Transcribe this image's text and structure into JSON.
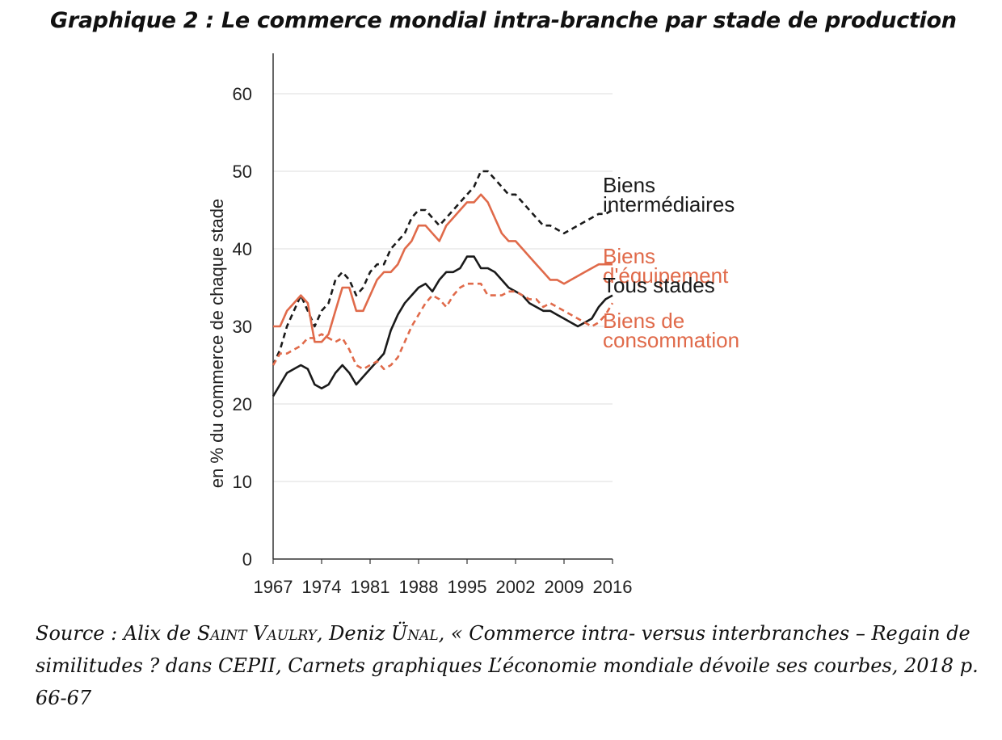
{
  "title": "Graphique 2 : Le commerce mondial intra-branche par stade de production",
  "chart_data": {
    "type": "line",
    "title": "Graphique 2 : Le commerce mondial intra-branche par stade de production",
    "xlabel": "",
    "ylabel": "en % du commerce de chaque stade",
    "xlim": [
      1967,
      2016
    ],
    "ylim": [
      0,
      65
    ],
    "yticks": [
      0,
      10,
      20,
      30,
      40,
      50,
      60
    ],
    "xticks": [
      1967,
      1974,
      1981,
      1988,
      1995,
      2002,
      2009,
      2016
    ],
    "x": [
      1967,
      1968,
      1969,
      1970,
      1971,
      1972,
      1973,
      1974,
      1975,
      1976,
      1977,
      1978,
      1979,
      1980,
      1981,
      1982,
      1983,
      1984,
      1985,
      1986,
      1987,
      1988,
      1989,
      1990,
      1991,
      1992,
      1993,
      1994,
      1995,
      1996,
      1997,
      1998,
      1999,
      2000,
      2001,
      2002,
      2003,
      2004,
      2005,
      2006,
      2007,
      2008,
      2009,
      2010,
      2011,
      2012,
      2013,
      2014,
      2015,
      2016
    ],
    "series": [
      {
        "name": "Biens intermédiaires",
        "color": "#1a1a1a",
        "dash": "dashed",
        "values": [
          25,
          27,
          30,
          32,
          34,
          32,
          30,
          32,
          33,
          36,
          37,
          36,
          34,
          35,
          37,
          38,
          38,
          40,
          41,
          42,
          44,
          45,
          45,
          44,
          43,
          44,
          45,
          46,
          47,
          48,
          50,
          50,
          49,
          48,
          47,
          47,
          46,
          45,
          44,
          43,
          43,
          42.5,
          42,
          42.5,
          43,
          43.5,
          44,
          44.5,
          44.5,
          45
        ]
      },
      {
        "name": "Biens d'équipement",
        "color": "#e06a4a",
        "dash": "solid",
        "values": [
          30,
          30,
          32,
          33,
          34,
          33,
          28,
          28,
          29,
          32,
          35,
          35,
          32,
          32,
          34,
          36,
          37,
          37,
          38,
          40,
          41,
          43,
          43,
          42,
          41,
          43,
          44,
          45,
          46,
          46,
          47,
          46,
          44,
          42,
          41,
          41,
          40,
          39,
          38,
          37,
          36,
          36,
          35.5,
          36,
          36.5,
          37,
          37.5,
          38,
          38,
          38
        ]
      },
      {
        "name": "Tous stades",
        "color": "#1a1a1a",
        "dash": "solid",
        "values": [
          21,
          22.5,
          24,
          24.5,
          25,
          24.5,
          22.5,
          22,
          22.5,
          24,
          25,
          24,
          22.5,
          23.5,
          24.5,
          25.5,
          26.5,
          29.5,
          31.5,
          33,
          34,
          35,
          35.5,
          34.5,
          36,
          37,
          37,
          37.5,
          39,
          39,
          37.5,
          37.5,
          37,
          36,
          35,
          34.5,
          34,
          33,
          32.5,
          32,
          32,
          31.5,
          31,
          30.5,
          30,
          30.5,
          31,
          32.5,
          33.5,
          34
        ]
      },
      {
        "name": "Biens de consommation",
        "color": "#e06a4a",
        "dash": "dashed",
        "values": [
          25,
          26.5,
          26.5,
          27,
          27.5,
          28.5,
          28.5,
          29,
          28.5,
          28,
          28.5,
          27,
          25,
          24.5,
          25,
          25.5,
          24.5,
          25,
          26,
          28,
          30,
          31.5,
          33,
          34,
          33.5,
          32.5,
          34,
          35,
          35.5,
          35.5,
          35.5,
          34,
          34,
          34,
          34.5,
          34.5,
          34,
          33.5,
          33.5,
          32.5,
          33,
          32.5,
          32,
          31.5,
          31,
          30.5,
          30,
          30.5,
          31.5,
          33
        ]
      }
    ],
    "legend": [
      {
        "lines": [
          "Biens",
          "intermédiaires"
        ],
        "color": "#1a1a1a"
      },
      {
        "lines": [
          "Biens",
          "d'équipement"
        ],
        "color": "#e06a4a"
      },
      {
        "lines": [
          "Tous stades"
        ],
        "color": "#1a1a1a"
      },
      {
        "lines": [
          "Biens de",
          "consommation"
        ],
        "color": "#e06a4a"
      }
    ],
    "legend_position": "right",
    "grid": true
  },
  "source": {
    "prefix": "Source : Alix de ",
    "author1": "Saint Vaulry",
    "sep": ", Deniz ",
    "author2": "Ünal",
    "rest": ", « Commerce intra- versus interbranches – Regain de similitudes ? dans CEPII, Carnets graphiques L’économie mondiale dévoile ses courbes, 2018 p. 66-67"
  }
}
